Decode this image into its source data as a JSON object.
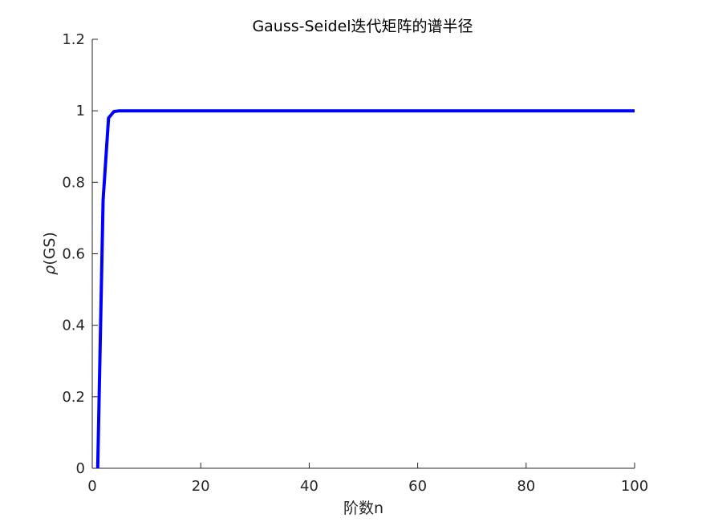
{
  "chart_data": {
    "type": "line",
    "title": "Gauss-Seidel迭代矩阵的谱半径",
    "xlabel": "阶数n",
    "ylabel_symbol": "ρ",
    "ylabel_text": "(GS)",
    "xlim": [
      0,
      100
    ],
    "ylim": [
      0,
      1.2
    ],
    "xticks": [
      0,
      20,
      40,
      60,
      80,
      100
    ],
    "yticks": [
      0,
      0.2,
      0.4,
      0.6,
      0.8,
      1,
      1.2
    ],
    "xtick_labels": [
      "0",
      "20",
      "40",
      "60",
      "80",
      "100"
    ],
    "ytick_labels": [
      "0",
      "0.2",
      "0.4",
      "0.6",
      "0.8",
      "1",
      "1.2"
    ],
    "grid": false,
    "legend": "none",
    "colors": {
      "line": "#0000ff",
      "axis": "#262626"
    },
    "series": [
      {
        "x": [
          1,
          2,
          3,
          4,
          5,
          6,
          10,
          20,
          30,
          40,
          50,
          60,
          70,
          80,
          90,
          100
        ],
        "y": [
          0,
          0.75,
          0.98,
          0.998,
          1.0,
          1.0,
          1.0,
          1.0,
          1.0,
          1.0,
          1.0,
          1.0,
          1.0,
          1.0,
          1.0,
          1.0
        ]
      }
    ]
  }
}
